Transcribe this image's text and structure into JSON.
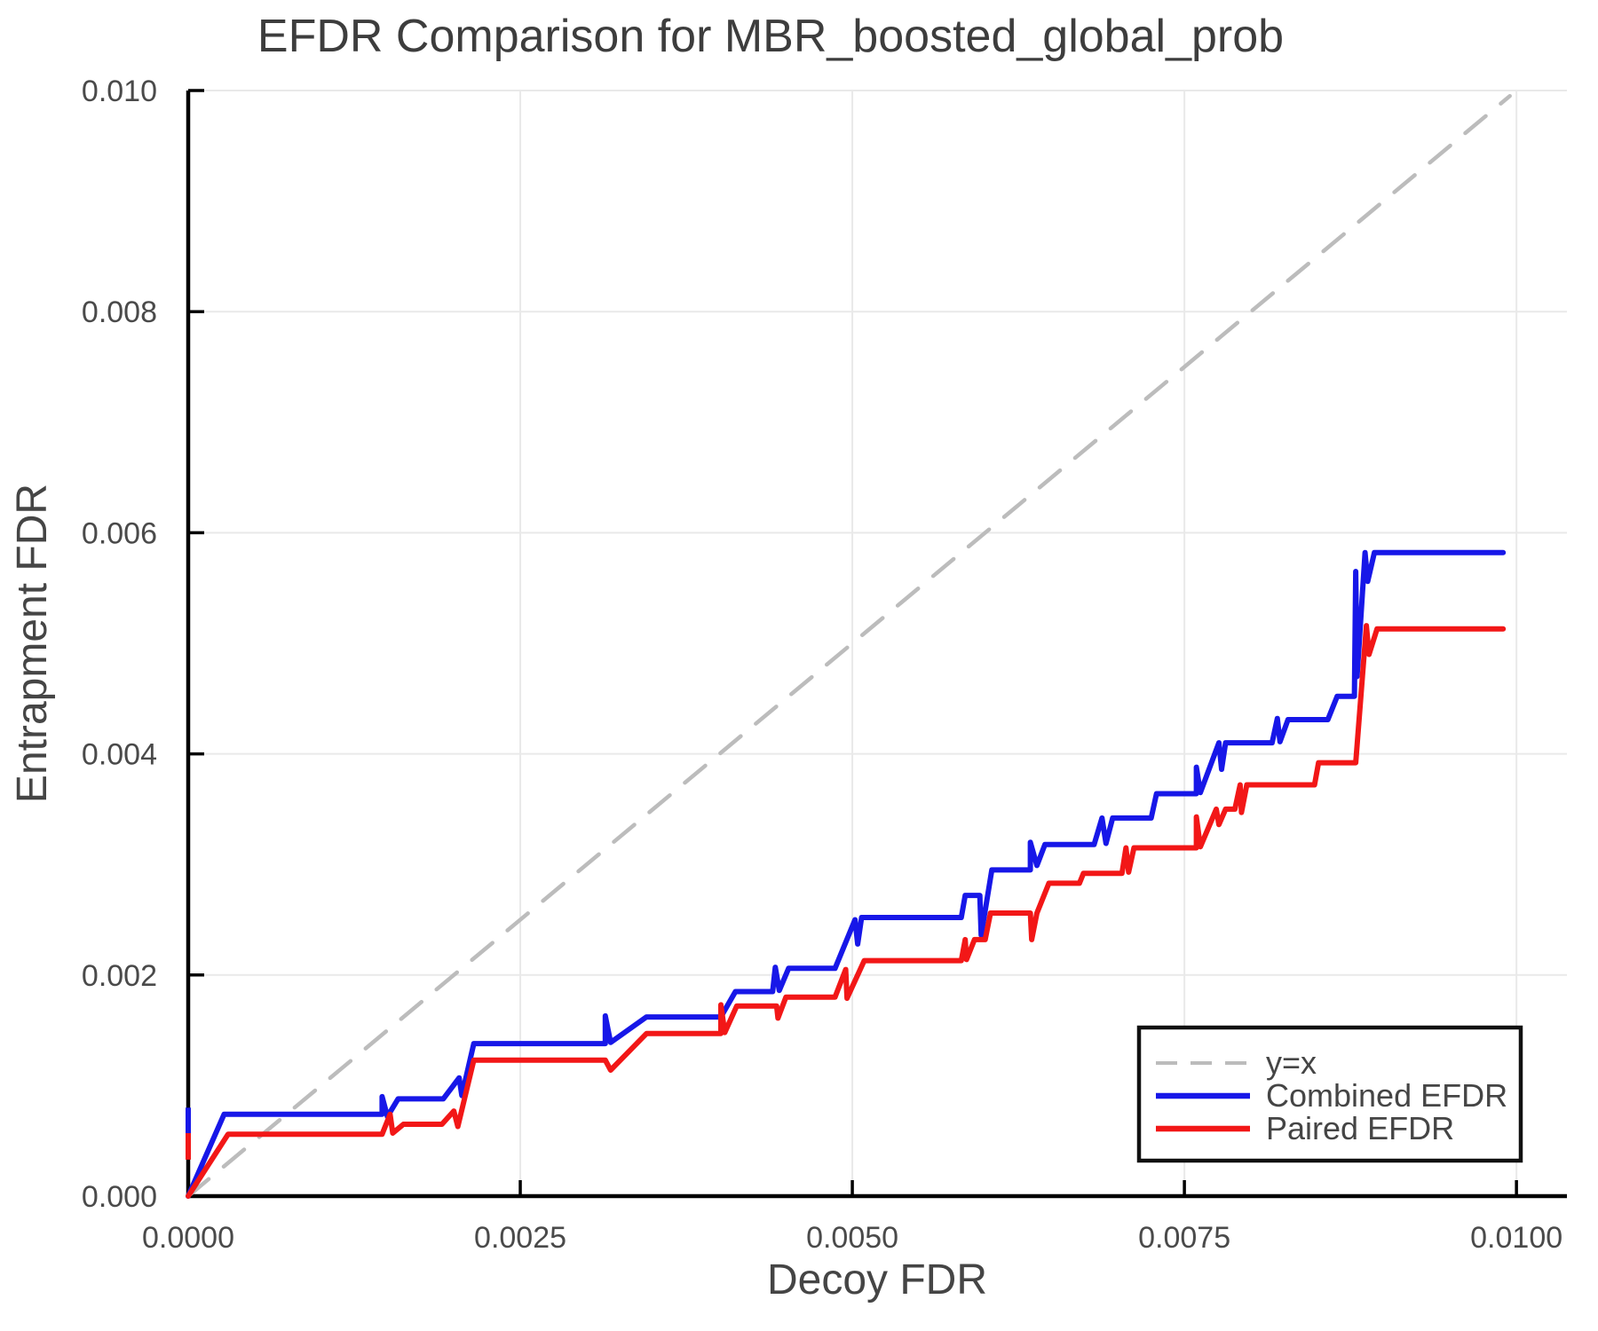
{
  "chart_data": {
    "type": "line",
    "title": "EFDR Comparison for MBR_boosted_global_prob",
    "xlabel": "Decoy FDR",
    "ylabel": "Entrapment FDR",
    "xlim": [
      0,
      0.01038
    ],
    "ylim": [
      0,
      0.01
    ],
    "grid": true,
    "x_ticks": {
      "values": [
        0.0,
        0.0025,
        0.005,
        0.0075,
        0.01
      ],
      "labels": [
        "0.0000",
        "0.0025",
        "0.0050",
        "0.0075",
        "0.0100"
      ]
    },
    "y_ticks": {
      "values": [
        0.0,
        0.002,
        0.004,
        0.006,
        0.008,
        0.01
      ],
      "labels": [
        "0.000",
        "0.002",
        "0.004",
        "0.006",
        "0.008",
        "0.010"
      ]
    },
    "colors": {
      "grid": "#e9e9e9",
      "axis": "#000000",
      "identity": "#bcbcbc",
      "combined": "#1717e8",
      "paired": "#f21717",
      "text": "#4a4a4a"
    },
    "legend": {
      "position": "bottom-right",
      "entries": [
        {
          "label": "y=x",
          "color": "#bcbcbc",
          "dash": true
        },
        {
          "label": "Combined EFDR",
          "color": "#1717e8",
          "dash": false
        },
        {
          "label": "Paired EFDR",
          "color": "#f21717",
          "dash": false
        }
      ]
    },
    "series": [
      {
        "name": "y=x",
        "color": "#bcbcbc",
        "width": 4.5,
        "dash": [
          30,
          22
        ],
        "points": [
          [
            0,
            0
          ],
          [
            0.00995,
            0.00995
          ]
        ]
      },
      {
        "name": "Combined EFDR",
        "color": "#1717e8",
        "width": 6,
        "dash": null,
        "stub": [
          [
            0,
            0.00057
          ],
          [
            0,
            0.0008
          ]
        ],
        "points": [
          [
            0,
            0
          ],
          [
            0.00027,
            0.00074
          ],
          [
            0.00146,
            0.00074
          ],
          [
            0.00146,
            0.0009
          ],
          [
            0.0015,
            0.00072
          ],
          [
            0.00158,
            0.00088
          ],
          [
            0.00192,
            0.00088
          ],
          [
            0.00204,
            0.00107
          ],
          [
            0.00206,
            0.00091
          ],
          [
            0.00215,
            0.00138
          ],
          [
            0.00314,
            0.00138
          ],
          [
            0.00314,
            0.00163
          ],
          [
            0.00318,
            0.00139
          ],
          [
            0.00345,
            0.00162
          ],
          [
            0.00401,
            0.00162
          ],
          [
            0.00412,
            0.00185
          ],
          [
            0.0044,
            0.00185
          ],
          [
            0.00442,
            0.00207
          ],
          [
            0.00445,
            0.00186
          ],
          [
            0.00452,
            0.00206
          ],
          [
            0.00487,
            0.00206
          ],
          [
            0.00502,
            0.0025
          ],
          [
            0.00504,
            0.00228
          ],
          [
            0.00507,
            0.00252
          ],
          [
            0.00582,
            0.00252
          ],
          [
            0.00585,
            0.00272
          ],
          [
            0.00596,
            0.00272
          ],
          [
            0.00597,
            0.00236
          ],
          [
            0.00605,
            0.00295
          ],
          [
            0.00634,
            0.00295
          ],
          [
            0.00634,
            0.0032
          ],
          [
            0.00639,
            0.00299
          ],
          [
            0.00645,
            0.00318
          ],
          [
            0.00682,
            0.00318
          ],
          [
            0.00688,
            0.00342
          ],
          [
            0.00691,
            0.00319
          ],
          [
            0.00696,
            0.00342
          ],
          [
            0.00725,
            0.00342
          ],
          [
            0.00729,
            0.00364
          ],
          [
            0.00759,
            0.00364
          ],
          [
            0.00759,
            0.00388
          ],
          [
            0.00762,
            0.00365
          ],
          [
            0.00776,
            0.0041
          ],
          [
            0.00778,
            0.00386
          ],
          [
            0.00781,
            0.0041
          ],
          [
            0.00816,
            0.0041
          ],
          [
            0.0082,
            0.00432
          ],
          [
            0.00822,
            0.00411
          ],
          [
            0.00828,
            0.00431
          ],
          [
            0.00858,
            0.00431
          ],
          [
            0.00865,
            0.00452
          ],
          [
            0.00878,
            0.00452
          ],
          [
            0.00879,
            0.00565
          ],
          [
            0.0088,
            0.0047
          ],
          [
            0.00886,
            0.00582
          ],
          [
            0.00888,
            0.00556
          ],
          [
            0.00893,
            0.00582
          ],
          [
            0.0099,
            0.00582
          ]
        ]
      },
      {
        "name": "Paired EFDR",
        "color": "#f21717",
        "width": 6,
        "dash": null,
        "stub": [
          [
            0,
            0.00033
          ],
          [
            0,
            0.00057
          ]
        ],
        "points": [
          [
            0,
            0
          ],
          [
            0.0003,
            0.00056
          ],
          [
            0.00146,
            0.00056
          ],
          [
            0.00152,
            0.00074
          ],
          [
            0.00154,
            0.00057
          ],
          [
            0.00162,
            0.00065
          ],
          [
            0.00191,
            0.00065
          ],
          [
            0.002,
            0.00077
          ],
          [
            0.00203,
            0.00063
          ],
          [
            0.00215,
            0.00123
          ],
          [
            0.00314,
            0.00123
          ],
          [
            0.00318,
            0.00114
          ],
          [
            0.00345,
            0.00147
          ],
          [
            0.00401,
            0.00147
          ],
          [
            0.00401,
            0.00173
          ],
          [
            0.00404,
            0.00148
          ],
          [
            0.00413,
            0.00172
          ],
          [
            0.00443,
            0.00172
          ],
          [
            0.00444,
            0.00161
          ],
          [
            0.0045,
            0.0018
          ],
          [
            0.00487,
            0.0018
          ],
          [
            0.00495,
            0.00205
          ],
          [
            0.00496,
            0.00179
          ],
          [
            0.00509,
            0.00213
          ],
          [
            0.00582,
            0.00213
          ],
          [
            0.00585,
            0.00232
          ],
          [
            0.00586,
            0.00214
          ],
          [
            0.00592,
            0.00232
          ],
          [
            0.006,
            0.00232
          ],
          [
            0.00604,
            0.00256
          ],
          [
            0.00634,
            0.00256
          ],
          [
            0.00635,
            0.00232
          ],
          [
            0.00639,
            0.00256
          ],
          [
            0.00648,
            0.00283
          ],
          [
            0.00671,
            0.00283
          ],
          [
            0.00674,
            0.00292
          ],
          [
            0.00703,
            0.00292
          ],
          [
            0.00706,
            0.00315
          ],
          [
            0.00708,
            0.00293
          ],
          [
            0.00712,
            0.00315
          ],
          [
            0.00759,
            0.00315
          ],
          [
            0.00759,
            0.00343
          ],
          [
            0.00762,
            0.00316
          ],
          [
            0.00774,
            0.0035
          ],
          [
            0.00776,
            0.00336
          ],
          [
            0.00781,
            0.0035
          ],
          [
            0.00788,
            0.0035
          ],
          [
            0.00792,
            0.00372
          ],
          [
            0.00793,
            0.00347
          ],
          [
            0.00797,
            0.00372
          ],
          [
            0.00848,
            0.00372
          ],
          [
            0.00851,
            0.00392
          ],
          [
            0.00879,
            0.00392
          ],
          [
            0.00887,
            0.00516
          ],
          [
            0.00889,
            0.0049
          ],
          [
            0.00895,
            0.00513
          ],
          [
            0.0099,
            0.00513
          ]
        ]
      }
    ]
  }
}
